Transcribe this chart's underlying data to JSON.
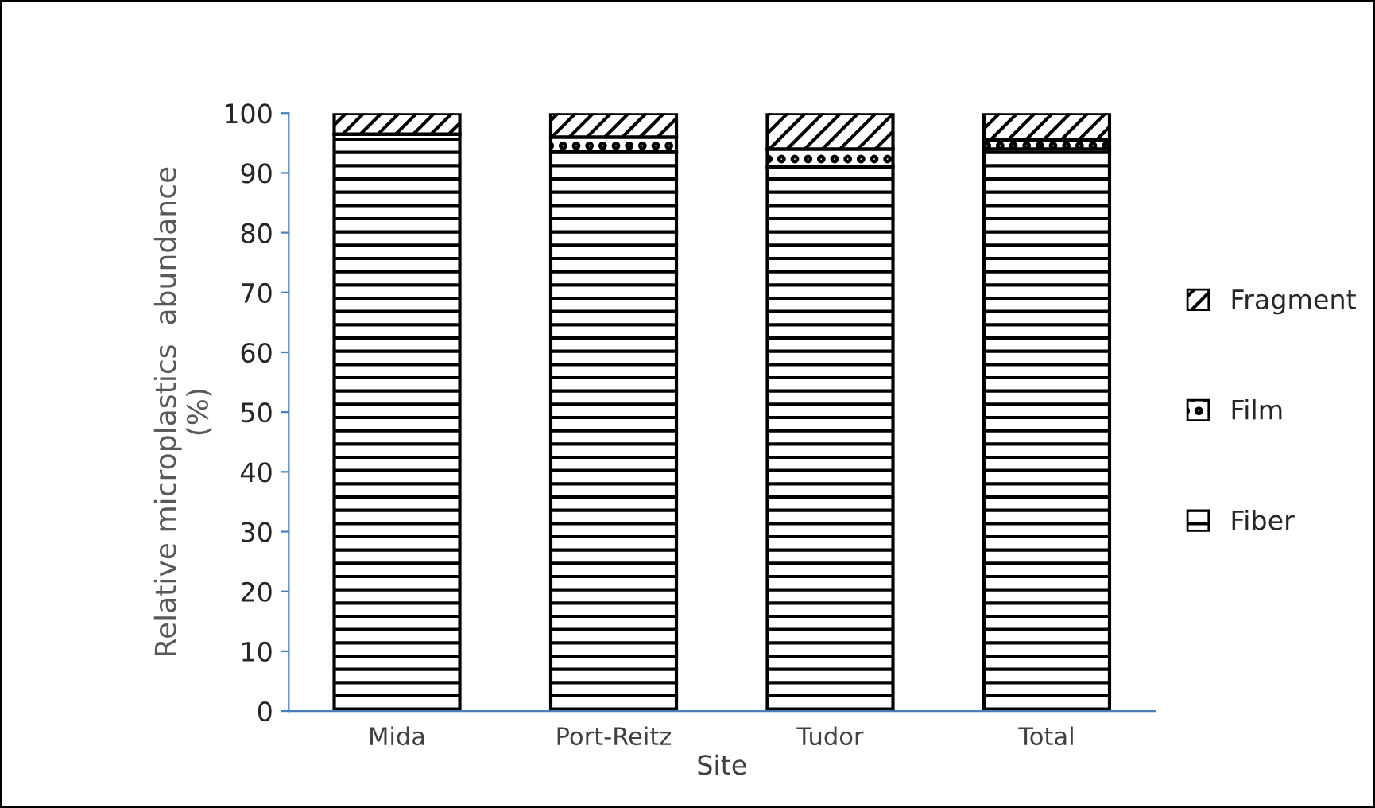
{
  "chart_data": {
    "type": "bar",
    "stacked": true,
    "xlabel": "Site",
    "ylabel": "Relative microplastics  abundance\n(%)",
    "categories": [
      "Mida",
      "Port-Reitz",
      "Tudor",
      "Total"
    ],
    "series": [
      {
        "name": "Fiber",
        "color": "#000000",
        "values": [
          96.5,
          93.5,
          91,
          94
        ]
      },
      {
        "name": "Film",
        "color": "#000000",
        "values": [
          0,
          2.5,
          3,
          1.5
        ]
      },
      {
        "name": "Fragment",
        "color": "#000000",
        "values": [
          3.5,
          4,
          6,
          4.5
        ]
      }
    ],
    "ylim": [
      0,
      100
    ],
    "yticks": [
      0,
      10,
      20,
      30,
      40,
      50,
      60,
      70,
      80,
      90,
      100
    ],
    "grid": false,
    "legend": "right"
  }
}
